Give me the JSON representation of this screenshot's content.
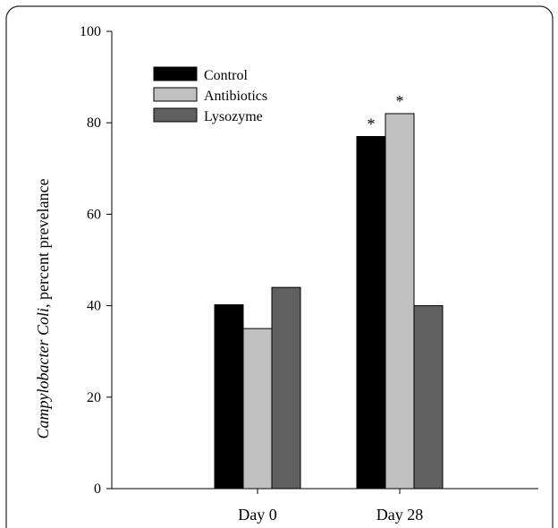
{
  "chart_data": {
    "type": "bar",
    "title": "",
    "xlabel": "",
    "ylabel": {
      "italic": "Campylobacter Coli",
      "rest": ", percent prevelance"
    },
    "ylim": [
      0,
      100
    ],
    "yticks": [
      "0",
      "20",
      "40",
      "60",
      "80",
      "100"
    ],
    "categories": [
      "Day 0",
      "Day 28"
    ],
    "series": [
      {
        "name": "Control",
        "color": "#000000",
        "values": [
          40.2,
          77.0
        ]
      },
      {
        "name": "Antibiotics",
        "color": "#c0c0c0",
        "values": [
          35.0,
          82.0
        ]
      },
      {
        "name": "Lysozyme",
        "color": "#606060",
        "values": [
          44.0,
          40.0
        ]
      }
    ],
    "annotations": [
      {
        "text": "*",
        "category_index": 1,
        "series_index": 0
      },
      {
        "text": "*",
        "category_index": 1,
        "series_index": 1
      }
    ],
    "legend_position": "top-left",
    "grid": false
  }
}
